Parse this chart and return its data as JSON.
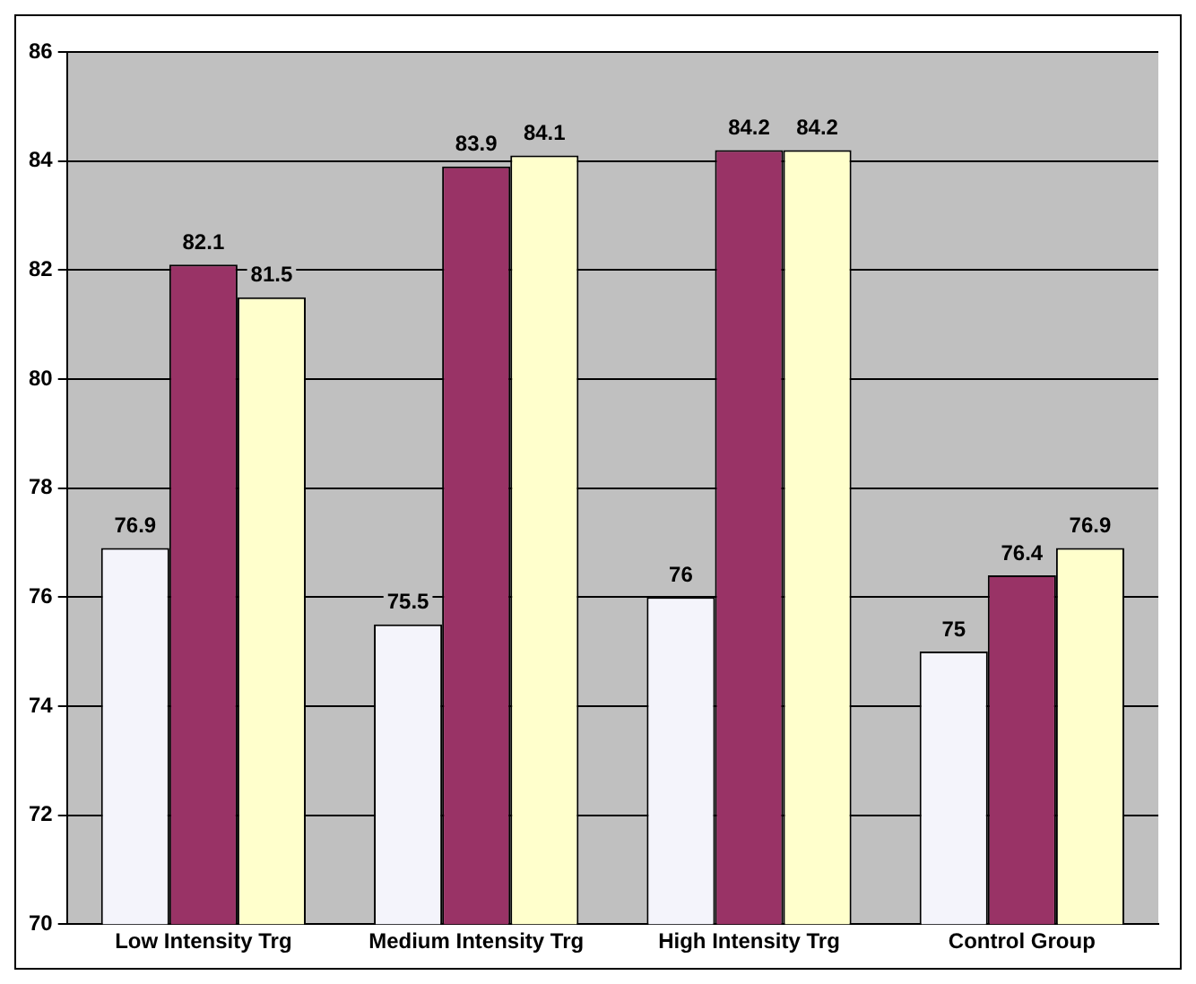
{
  "chart_data": {
    "type": "bar",
    "categories": [
      "Low Intensity Trg",
      "Medium Intensity Trg",
      "High Intensity Trg",
      "Control Group"
    ],
    "series": [
      {
        "color": "#f4f4fb",
        "values": [
          76.9,
          75.5,
          76,
          75
        ]
      },
      {
        "color": "#993366",
        "values": [
          82.1,
          83.9,
          84.2,
          76.4
        ]
      },
      {
        "color": "#ffffcc",
        "values": [
          81.5,
          84.1,
          84.2,
          76.9
        ]
      }
    ],
    "ylim": [
      70,
      86
    ],
    "yticks": [
      70,
      72,
      74,
      76,
      78,
      80,
      82,
      84,
      86
    ],
    "grid": "y",
    "legend": false,
    "data_labels": true
  }
}
